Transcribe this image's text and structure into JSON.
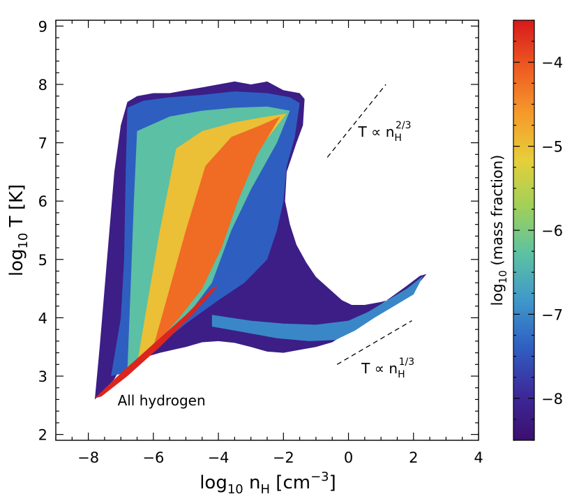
{
  "chart_data": {
    "type": "heatmap",
    "title": "",
    "xlabel": {
      "main": "log",
      "sub": "10",
      "var": " n",
      "varsub": "H",
      "unit": " [cm",
      "unitsup": "−3",
      "close": "]"
    },
    "ylabel": {
      "main": "log",
      "sub": "10",
      "rest": " T [K]"
    },
    "xlim": [
      -9,
      4
    ],
    "ylim": [
      1.9,
      9.1
    ],
    "xticks": [
      -8,
      -6,
      -4,
      -2,
      0,
      2,
      4
    ],
    "xtick_labels": [
      "−8",
      "−6",
      "−4",
      "−2",
      "0",
      "2",
      "4"
    ],
    "yticks": [
      2,
      3,
      4,
      5,
      6,
      7,
      8,
      9
    ],
    "ytick_labels": [
      "2",
      "3",
      "4",
      "5",
      "6",
      "7",
      "8",
      "9"
    ],
    "colorbar": {
      "label_main": "log",
      "label_sub": "10",
      "label_rest": " (mass fraction)",
      "range": [
        -8.5,
        -3.5
      ],
      "ticks": [
        -4,
        -5,
        -6,
        -7,
        -8
      ],
      "tick_labels": [
        "−4",
        "−5",
        "−6",
        "−7",
        "−8"
      ],
      "colors": [
        "#3b0f6f",
        "#3d2a9a",
        "#2f5fc2",
        "#3f98c9",
        "#5cc2a2",
        "#9fd05a",
        "#e6cf3a",
        "#f59a2b",
        "#ee5a22",
        "#d7191c"
      ]
    },
    "annotations": [
      {
        "name": "all-hydrogen",
        "text": "All hydrogen",
        "x": -7.1,
        "y": 2.5
      },
      {
        "name": "slope-two-thirds",
        "text": "T ∝ n",
        "sub": "H",
        "sup": "2/3",
        "x": 0.3,
        "y": 7.1
      },
      {
        "name": "slope-one-third",
        "text": "T ∝ n",
        "sub": "H",
        "sup": "1/3",
        "x": 0.4,
        "y": 3.05
      }
    ],
    "reference_lines": [
      {
        "name": "reference-line-two-thirds",
        "x": [
          -0.65,
          1.15
        ],
        "y": [
          6.75,
          8.0
        ]
      },
      {
        "name": "reference-line-one-third",
        "x": [
          -0.35,
          1.95
        ],
        "y": [
          3.2,
          3.95
        ]
      }
    ],
    "regions": [
      {
        "name": "envelope",
        "level": -8.2,
        "points": [
          [
            -7.8,
            2.6
          ],
          [
            -7.5,
            2.75
          ],
          [
            -7.2,
            2.95
          ],
          [
            -7.0,
            3.15
          ],
          [
            -6.4,
            3.3
          ],
          [
            -5.8,
            3.4
          ],
          [
            -5.0,
            3.5
          ],
          [
            -4.5,
            3.58
          ],
          [
            -4.0,
            3.6
          ],
          [
            -3.5,
            3.57
          ],
          [
            -3.0,
            3.5
          ],
          [
            -2.5,
            3.42
          ],
          [
            -2.0,
            3.4
          ],
          [
            -1.5,
            3.45
          ],
          [
            -1.0,
            3.5
          ],
          [
            -0.5,
            3.58
          ],
          [
            -0.1,
            3.72
          ],
          [
            0.3,
            3.95
          ],
          [
            0.8,
            4.15
          ],
          [
            1.3,
            4.35
          ],
          [
            1.8,
            4.55
          ],
          [
            2.2,
            4.72
          ],
          [
            2.4,
            4.75
          ],
          [
            2.1,
            4.55
          ],
          [
            1.5,
            4.35
          ],
          [
            1.0,
            4.27
          ],
          [
            0.5,
            4.22
          ],
          [
            0.1,
            4.22
          ],
          [
            -0.2,
            4.3
          ],
          [
            -0.5,
            4.45
          ],
          [
            -0.8,
            4.6
          ],
          [
            -1.0,
            4.7
          ],
          [
            -1.3,
            4.95
          ],
          [
            -1.6,
            5.25
          ],
          [
            -1.8,
            5.6
          ],
          [
            -1.95,
            6.0
          ],
          [
            -1.9,
            6.5
          ],
          [
            -1.6,
            7.0
          ],
          [
            -1.4,
            7.3
          ],
          [
            -1.35,
            7.75
          ],
          [
            -1.5,
            7.85
          ],
          [
            -2.0,
            7.9
          ],
          [
            -2.5,
            8.05
          ],
          [
            -3.0,
            8.0
          ],
          [
            -3.5,
            8.05
          ],
          [
            -4.0,
            8.0
          ],
          [
            -4.5,
            7.95
          ],
          [
            -5.0,
            7.9
          ],
          [
            -5.5,
            7.85
          ],
          [
            -6.0,
            7.85
          ],
          [
            -6.5,
            7.8
          ],
          [
            -6.8,
            7.7
          ],
          [
            -7.0,
            7.3
          ],
          [
            -7.2,
            6.5
          ],
          [
            -7.35,
            5.5
          ],
          [
            -7.5,
            4.5
          ],
          [
            -7.65,
            3.5
          ],
          [
            -7.8,
            2.6
          ]
        ]
      },
      {
        "name": "upper-wedge",
        "level": -7.4,
        "points": [
          [
            -6.8,
            7.6
          ],
          [
            -6.3,
            7.72
          ],
          [
            -5.5,
            7.78
          ],
          [
            -4.5,
            7.82
          ],
          [
            -3.5,
            7.88
          ],
          [
            -2.5,
            7.85
          ],
          [
            -1.8,
            7.78
          ],
          [
            -1.5,
            7.68
          ],
          [
            -1.65,
            7.1
          ],
          [
            -1.9,
            6.6
          ],
          [
            -2.0,
            6.0
          ],
          [
            -2.2,
            5.5
          ],
          [
            -2.5,
            5.0
          ],
          [
            -3.2,
            4.6
          ],
          [
            -4.0,
            4.3
          ],
          [
            -5.0,
            3.9
          ],
          [
            -6.0,
            3.45
          ],
          [
            -6.9,
            3.05
          ],
          [
            -7.3,
            3.0
          ],
          [
            -7.0,
            4.0
          ],
          [
            -6.9,
            5.0
          ],
          [
            -6.85,
            6.5
          ],
          [
            -6.8,
            7.6
          ]
        ]
      },
      {
        "name": "cool-branch",
        "level": -7.0,
        "points": [
          [
            -4.2,
            4.05
          ],
          [
            -3.0,
            3.95
          ],
          [
            -2.0,
            3.9
          ],
          [
            -1.0,
            3.88
          ],
          [
            0.0,
            3.95
          ],
          [
            0.6,
            4.1
          ],
          [
            1.2,
            4.3
          ],
          [
            1.8,
            4.5
          ],
          [
            2.3,
            4.72
          ],
          [
            2.0,
            4.4
          ],
          [
            1.4,
            4.2
          ],
          [
            0.8,
            4.0
          ],
          [
            0.2,
            3.78
          ],
          [
            -0.4,
            3.62
          ],
          [
            -1.2,
            3.6
          ],
          [
            -2.2,
            3.65
          ],
          [
            -3.2,
            3.75
          ],
          [
            -4.2,
            3.85
          ]
        ]
      },
      {
        "name": "diffuse-core",
        "level": -6.3,
        "points": [
          [
            -6.5,
            7.2
          ],
          [
            -5.5,
            7.45
          ],
          [
            -4.5,
            7.55
          ],
          [
            -3.5,
            7.6
          ],
          [
            -2.5,
            7.62
          ],
          [
            -1.8,
            7.55
          ],
          [
            -2.2,
            7.0
          ],
          [
            -3.0,
            6.2
          ],
          [
            -3.6,
            5.5
          ],
          [
            -4.2,
            4.6
          ],
          [
            -5.0,
            4.0
          ],
          [
            -6.0,
            3.5
          ],
          [
            -6.8,
            3.1
          ],
          [
            -6.7,
            4.5
          ],
          [
            -6.6,
            6.0
          ],
          [
            -6.5,
            7.2
          ]
        ]
      },
      {
        "name": "warm-core",
        "level": -5.0,
        "points": [
          [
            -5.3,
            6.9
          ],
          [
            -4.5,
            7.2
          ],
          [
            -3.5,
            7.35
          ],
          [
            -2.5,
            7.45
          ],
          [
            -1.9,
            7.5
          ],
          [
            -2.6,
            7.0
          ],
          [
            -3.3,
            6.3
          ],
          [
            -3.8,
            5.6
          ],
          [
            -4.3,
            4.9
          ],
          [
            -5.0,
            4.2
          ],
          [
            -5.8,
            3.7
          ],
          [
            -6.5,
            3.2
          ],
          [
            -6.2,
            4.2
          ],
          [
            -5.8,
            5.5
          ],
          [
            -5.3,
            6.9
          ]
        ]
      },
      {
        "name": "peak-core",
        "level": -4.2,
        "points": [
          [
            -4.4,
            6.6
          ],
          [
            -3.6,
            7.1
          ],
          [
            -2.7,
            7.3
          ],
          [
            -2.1,
            7.45
          ],
          [
            -2.8,
            6.8
          ],
          [
            -3.4,
            6.0
          ],
          [
            -3.9,
            5.2
          ],
          [
            -4.5,
            4.5
          ],
          [
            -5.2,
            4.0
          ],
          [
            -6.0,
            3.5
          ],
          [
            -5.5,
            4.5
          ],
          [
            -5.0,
            5.5
          ],
          [
            -4.4,
            6.6
          ]
        ]
      },
      {
        "name": "cooling-ridge",
        "level": -3.6,
        "points": [
          [
            -7.8,
            2.62
          ],
          [
            -7.0,
            3.05
          ],
          [
            -6.0,
            3.55
          ],
          [
            -5.0,
            4.05
          ],
          [
            -4.2,
            4.5
          ],
          [
            -4.0,
            4.55
          ],
          [
            -4.8,
            4.05
          ],
          [
            -5.8,
            3.5
          ],
          [
            -6.8,
            3.0
          ],
          [
            -7.6,
            2.65
          ]
        ]
      }
    ]
  }
}
